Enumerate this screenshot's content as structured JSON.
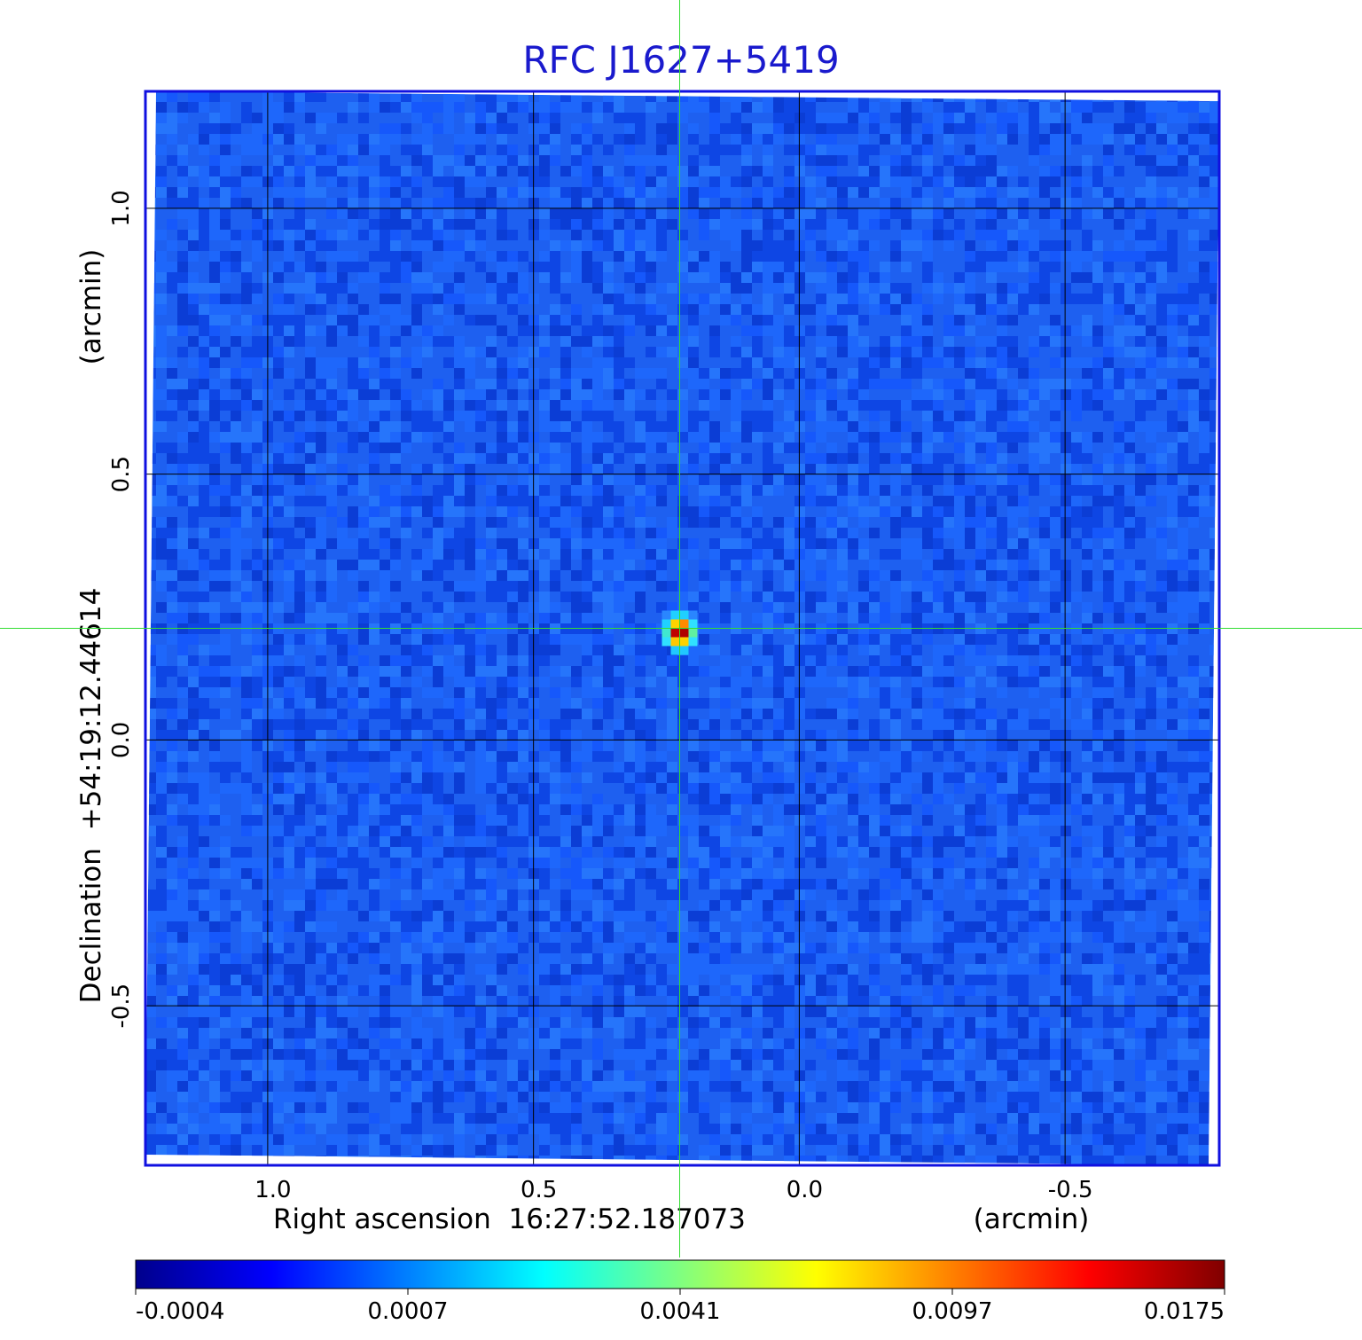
{
  "chart_data": {
    "type": "heatmap",
    "title": "RFC J1627+5419",
    "xlabel": "Right ascension  16:27:52.187073",
    "xlabel_unit": "(arcmin)",
    "ylabel": "Declination  +54:19:12.44614",
    "ylabel_unit": "(arcmin)",
    "x_ticks": [
      "1.0",
      "0.5",
      "0.0",
      "-0.5"
    ],
    "x_tick_values": [
      1.0,
      0.5,
      0.0,
      -0.5
    ],
    "y_ticks": [
      "1.0",
      "0.5",
      "0.0",
      "-0.5"
    ],
    "y_tick_values": [
      1.0,
      0.5,
      0.0,
      -0.5
    ],
    "xlim": [
      1.23,
      -0.79
    ],
    "ylim": [
      -0.8,
      1.22
    ],
    "grid": true,
    "x_direction": "decreasing to the right",
    "colorbar": {
      "ticks": [
        "-0.0004",
        "0.0007",
        "0.0041",
        "0.0097",
        "0.0175"
      ],
      "colormap": [
        "#00008c",
        "#0000ff",
        "#0080ff",
        "#00ffff",
        "#80ff80",
        "#ffff00",
        "#ff8000",
        "#ff0000",
        "#800000"
      ]
    },
    "source": {
      "x": 0.225,
      "y": 0.21,
      "peak": 0.0175
    },
    "crosshair": {
      "x": 0.225,
      "y": 0.21,
      "color": "#33dd33"
    },
    "background_color": "#1e60f0",
    "frame_color": "#1010e0"
  }
}
